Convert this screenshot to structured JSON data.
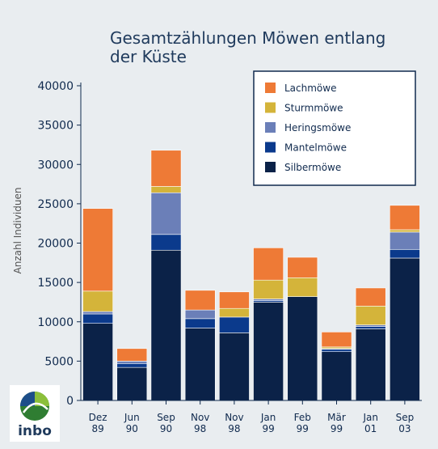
{
  "chart_data": {
    "type": "bar",
    "stacked": true,
    "title_lines": [
      "Gesamtzählungen Möwen entlang",
      "der Küste"
    ],
    "ylabel": "Anzahl Individuen",
    "xlabel": "",
    "ylim": [
      0,
      40000
    ],
    "yticks": [
      0,
      5000,
      10000,
      15000,
      20000,
      25000,
      30000,
      35000,
      40000
    ],
    "grid": false,
    "legend_position": "top-right",
    "categories": [
      [
        "Dez",
        "89"
      ],
      [
        "Jun",
        "90"
      ],
      [
        "Sep",
        "90"
      ],
      [
        "Nov",
        "98"
      ],
      [
        "Nov",
        "98"
      ],
      [
        "Jan",
        "99"
      ],
      [
        "Feb",
        "99"
      ],
      [
        "Mär",
        "99"
      ],
      [
        "Jan",
        "01"
      ],
      [
        "Sep",
        "03"
      ]
    ],
    "series": [
      {
        "name": "Silbermöwe",
        "color": "#0b2248",
        "values": [
          9800,
          4200,
          19100,
          9200,
          8600,
          12500,
          13200,
          6200,
          9100,
          18100
        ]
      },
      {
        "name": "Mantelmöwe",
        "color": "#0b3a8c",
        "values": [
          1200,
          500,
          2000,
          1200,
          2000,
          200,
          0,
          300,
          300,
          1100
        ]
      },
      {
        "name": "Heringsmöwe",
        "color": "#6b7fb8",
        "values": [
          300,
          300,
          5300,
          1100,
          0,
          200,
          0,
          100,
          200,
          2200
        ]
      },
      {
        "name": "Sturmmöwe",
        "color": "#d4b43a",
        "values": [
          2600,
          0,
          800,
          0,
          1100,
          2400,
          2400,
          200,
          2400,
          300
        ]
      },
      {
        "name": "Lachmöwe",
        "color": "#ee7a36",
        "values": [
          10500,
          1600,
          4600,
          2500,
          2100,
          4100,
          2600,
          1900,
          2300,
          3100
        ]
      }
    ]
  },
  "logo": {
    "text": "inbo"
  }
}
